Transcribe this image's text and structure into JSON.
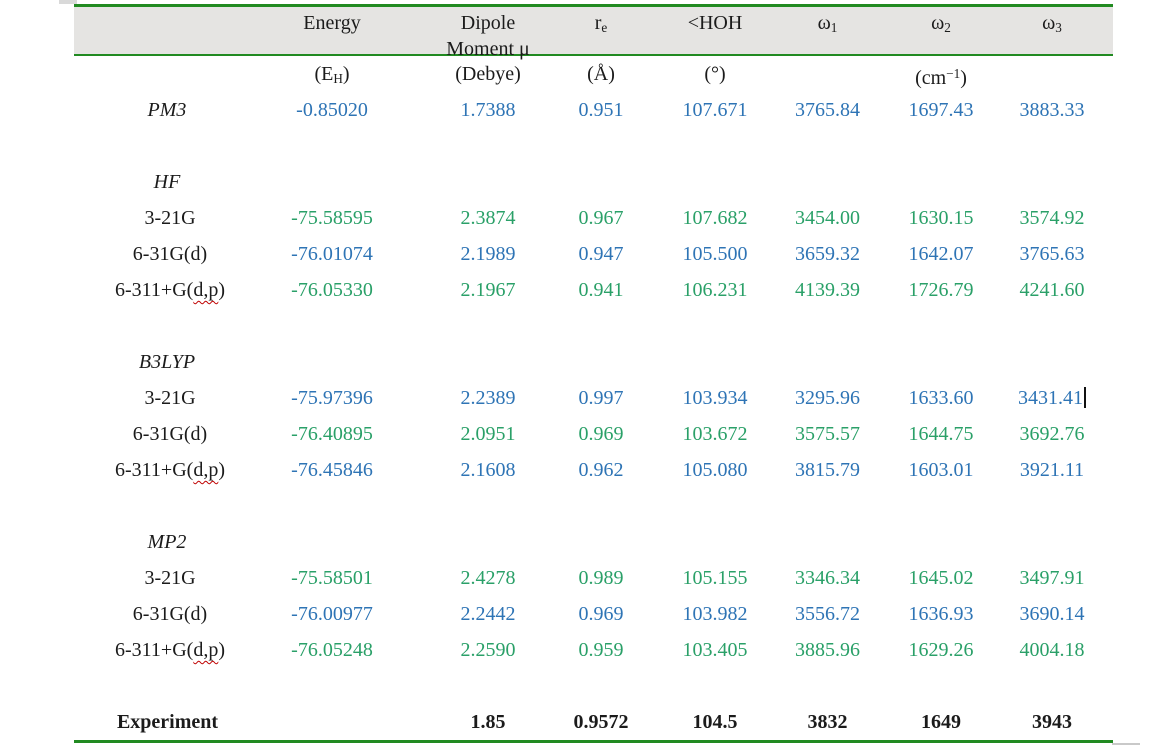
{
  "colors": {
    "table_border_green": "#218a21",
    "header_bg_gray": "#e5e4e2",
    "value_blue": "#2e74b5",
    "value_green": "#2aa068",
    "spellcheck_red": "#c00000"
  },
  "columns": [
    {
      "id": "row-label"
    },
    {
      "id": "energy"
    },
    {
      "id": "dipole-moment"
    },
    {
      "id": "bond-length-re"
    },
    {
      "id": "hoh-angle"
    },
    {
      "id": "omega1"
    },
    {
      "id": "omega2"
    },
    {
      "id": "omega3"
    }
  ],
  "header": {
    "energy": "Energy",
    "dipole_line1": "Dipole",
    "dipole_line2": "Moment μ",
    "re_base": "r",
    "re_sub": "e",
    "hoh": "<HOH",
    "omega_base": "ω",
    "omega1_sub": "1",
    "omega2_sub": "2",
    "omega3_sub": "3"
  },
  "units": {
    "energy_open": "(E",
    "energy_sub": "H",
    "energy_close": ")",
    "dipole": "(Debye)",
    "re": "(Å)",
    "hoh": "(°)",
    "wavenumber_open": "(cm",
    "wavenumber_sup": "−1",
    "wavenumber_close": ")"
  },
  "rows": [
    {
      "kind": "method",
      "label": "PM3",
      "color": "blue",
      "values": [
        "-0.85020",
        "1.7388",
        "0.951",
        "107.671",
        "3765.84",
        "1697.43",
        "3883.33"
      ]
    },
    {
      "kind": "spacer"
    },
    {
      "kind": "method",
      "label": "HF",
      "values": []
    },
    {
      "kind": "basis",
      "label": "3-21G",
      "color": "green",
      "values": [
        "-75.58595",
        "2.3874",
        "0.967",
        "107.682",
        "3454.00",
        "1630.15",
        "3574.92"
      ]
    },
    {
      "kind": "basis",
      "label": "6-31G(d)",
      "color": "blue",
      "values": [
        "-76.01074",
        "2.1989",
        "0.947",
        "105.500",
        "3659.32",
        "1642.07",
        "3765.63"
      ]
    },
    {
      "kind": "basis",
      "label_pre": "6-311+G(",
      "label_spell": "d,p",
      "label_post": ")",
      "color": "green",
      "values": [
        "-76.05330",
        "2.1967",
        "0.941",
        "106.231",
        "4139.39",
        "1726.79",
        "4241.60"
      ]
    },
    {
      "kind": "spacer"
    },
    {
      "kind": "method",
      "label": "B3LYP",
      "values": []
    },
    {
      "kind": "basis",
      "label": "3-21G",
      "color": "blue",
      "caret_after": 6,
      "values": [
        "-75.97396",
        "2.2389",
        "0.997",
        "103.934",
        "3295.96",
        "1633.60",
        "3431.41"
      ]
    },
    {
      "kind": "basis",
      "label": "6-31G(d)",
      "color": "green",
      "values": [
        "-76.40895",
        "2.0951",
        "0.969",
        "103.672",
        "3575.57",
        "1644.75",
        "3692.76"
      ]
    },
    {
      "kind": "basis",
      "label_pre": "6-311+G(",
      "label_spell": "d,p",
      "label_post": ")",
      "color": "blue",
      "values": [
        "-76.45846",
        "2.1608",
        "0.962",
        "105.080",
        "3815.79",
        "1603.01",
        "3921.11"
      ]
    },
    {
      "kind": "spacer"
    },
    {
      "kind": "method",
      "label": "MP2",
      "values": []
    },
    {
      "kind": "basis",
      "label": "3-21G",
      "color": "green",
      "values": [
        "-75.58501",
        "2.4278",
        "0.989",
        "105.155",
        "3346.34",
        "1645.02",
        "3497.91"
      ]
    },
    {
      "kind": "basis",
      "label": "6-31G(d)",
      "color": "blue",
      "values": [
        "-76.00977",
        "2.2442",
        "0.969",
        "103.982",
        "3556.72",
        "1636.93",
        "3690.14"
      ]
    },
    {
      "kind": "basis",
      "label_pre": "6-311+G(",
      "label_spell": "d,p",
      "label_post": ")",
      "color": "green",
      "values": [
        "-76.05248",
        "2.2590",
        "0.959",
        "103.405",
        "3885.96",
        "1629.26",
        "4004.18"
      ]
    },
    {
      "kind": "spacer"
    },
    {
      "kind": "experiment",
      "label": "Experiment",
      "values": [
        "",
        "1.85",
        "0.9572",
        "104.5",
        "3832",
        "1649",
        "3943"
      ]
    }
  ]
}
